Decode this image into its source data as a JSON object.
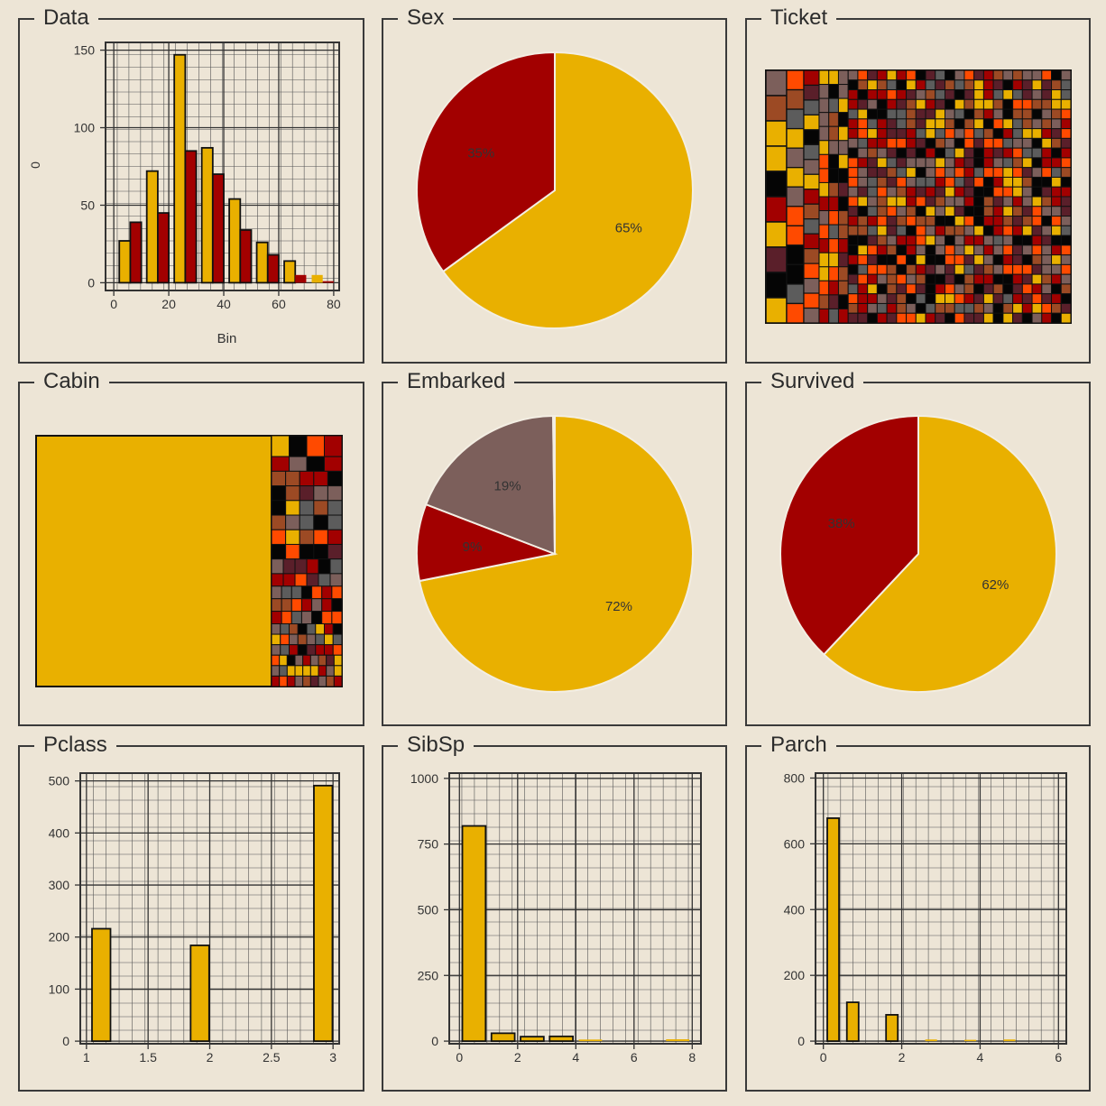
{
  "colors": {
    "background": "#ede5d6",
    "gold": "#e9b000",
    "crimson": "#a20000",
    "taupe": "#7c5f5b",
    "orange_red": "#ff4a00",
    "gray": "#5c5c5c",
    "black": "#050505",
    "rust": "#9c4a24",
    "plum": "#5a1f2a",
    "pale_gold": "#f2c200",
    "slice_border": "#f3eee3"
  },
  "panels": {
    "data": {
      "title": "Data"
    },
    "sex": {
      "title": "Sex"
    },
    "ticket": {
      "title": "Ticket"
    },
    "cabin": {
      "title": "Cabin"
    },
    "embarked": {
      "title": "Embarked"
    },
    "survived": {
      "title": "Survived"
    },
    "pclass": {
      "title": "Pclass"
    },
    "sibsp": {
      "title": "SibSp"
    },
    "parch": {
      "title": "Parch"
    }
  },
  "chart_data": [
    {
      "id": "data",
      "type": "bar",
      "title": "Data",
      "xlabel": "Bin",
      "ylabel": "0",
      "xlim": [
        -3,
        82
      ],
      "ylim": [
        -5,
        155
      ],
      "xticks": [
        0,
        20,
        40,
        60,
        80
      ],
      "yticks": [
        0,
        50,
        100,
        150
      ],
      "grid": true,
      "bar_width": 4,
      "series": [
        {
          "color": "gold",
          "x": [
            4,
            14,
            24,
            34,
            44,
            54,
            64,
            74
          ],
          "values": [
            27,
            72,
            147,
            87,
            54,
            26,
            14,
            5
          ]
        },
        {
          "color": "crimson",
          "x": [
            8,
            18,
            28,
            38,
            48,
            58,
            68,
            78
          ],
          "values": [
            39,
            45,
            85,
            70,
            34,
            18,
            5,
            1
          ]
        }
      ]
    },
    {
      "id": "sex",
      "type": "pie",
      "title": "Sex",
      "slices": [
        {
          "value": 65,
          "label": "65%",
          "color": "gold"
        },
        {
          "value": 35,
          "label": "35%",
          "color": "crimson"
        }
      ]
    },
    {
      "id": "ticket",
      "type": "heatmap",
      "title": "Ticket",
      "palette": [
        "crimson",
        "orange_red",
        "gold",
        "gray",
        "black",
        "taupe",
        "rust",
        "plum"
      ],
      "left_block": [
        "taupe",
        "rust",
        "gold",
        "gold",
        "black",
        "crimson",
        "gold",
        "plum",
        "black",
        "gold"
      ],
      "grid": true
    },
    {
      "id": "cabin",
      "type": "heatmap",
      "title": "Cabin",
      "palette": [
        "crimson",
        "orange_red",
        "gold",
        "gray",
        "black",
        "taupe",
        "rust",
        "plum"
      ],
      "dominant_color": "gold",
      "dominant_share": 0.77
    },
    {
      "id": "embarked",
      "type": "pie",
      "title": "Embarked",
      "slices": [
        {
          "value": 72,
          "label": "72%",
          "color": "gold"
        },
        {
          "value": 9,
          "label": "9%",
          "color": "crimson"
        },
        {
          "value": 19,
          "label": "19%",
          "color": "taupe"
        },
        {
          "value": 0.2,
          "label": "",
          "color": "gray"
        }
      ]
    },
    {
      "id": "survived",
      "type": "pie",
      "title": "Survived",
      "slices": [
        {
          "value": 62,
          "label": "62%",
          "color": "gold"
        },
        {
          "value": 38,
          "label": "38%",
          "color": "crimson"
        }
      ]
    },
    {
      "id": "pclass",
      "type": "bar",
      "title": "Pclass",
      "xlim": [
        0.95,
        3.05
      ],
      "ylim": [
        -5,
        515
      ],
      "xticks": [
        1,
        1.5,
        2,
        2.5,
        3
      ],
      "yticks": [
        0,
        100,
        200,
        300,
        400,
        500
      ],
      "grid": true,
      "bar_width": 0.15,
      "series": [
        {
          "color": "gold",
          "x": [
            1.12,
            1.92,
            2.92
          ],
          "values": [
            216,
            184,
            491
          ]
        }
      ]
    },
    {
      "id": "sibsp",
      "type": "bar",
      "title": "SibSp",
      "xlim": [
        -0.35,
        8.3
      ],
      "ylim": [
        -10,
        1020
      ],
      "xticks": [
        0,
        2,
        4,
        6,
        8
      ],
      "yticks": [
        0,
        250,
        500,
        750,
        1000
      ],
      "grid": true,
      "bar_width": 0.8,
      "series": [
        {
          "color": "gold",
          "x": [
            0.5,
            1.5,
            2.5,
            3.5,
            4.5,
            7.5
          ],
          "values": [
            819,
            30,
            17,
            18,
            6,
            7
          ]
        }
      ]
    },
    {
      "id": "parch",
      "type": "bar",
      "title": "Parch",
      "xlim": [
        -0.2,
        6.2
      ],
      "ylim": [
        -8,
        815
      ],
      "xticks": [
        0,
        2,
        4,
        6
      ],
      "yticks": [
        0,
        200,
        400,
        600,
        800
      ],
      "grid": true,
      "bar_width": 0.3,
      "series": [
        {
          "color": "gold",
          "x": [
            0.25,
            0.75,
            1.75,
            2.75,
            3.75,
            4.75
          ],
          "values": [
            678,
            118,
            80,
            5,
            4,
            5
          ]
        }
      ]
    }
  ]
}
